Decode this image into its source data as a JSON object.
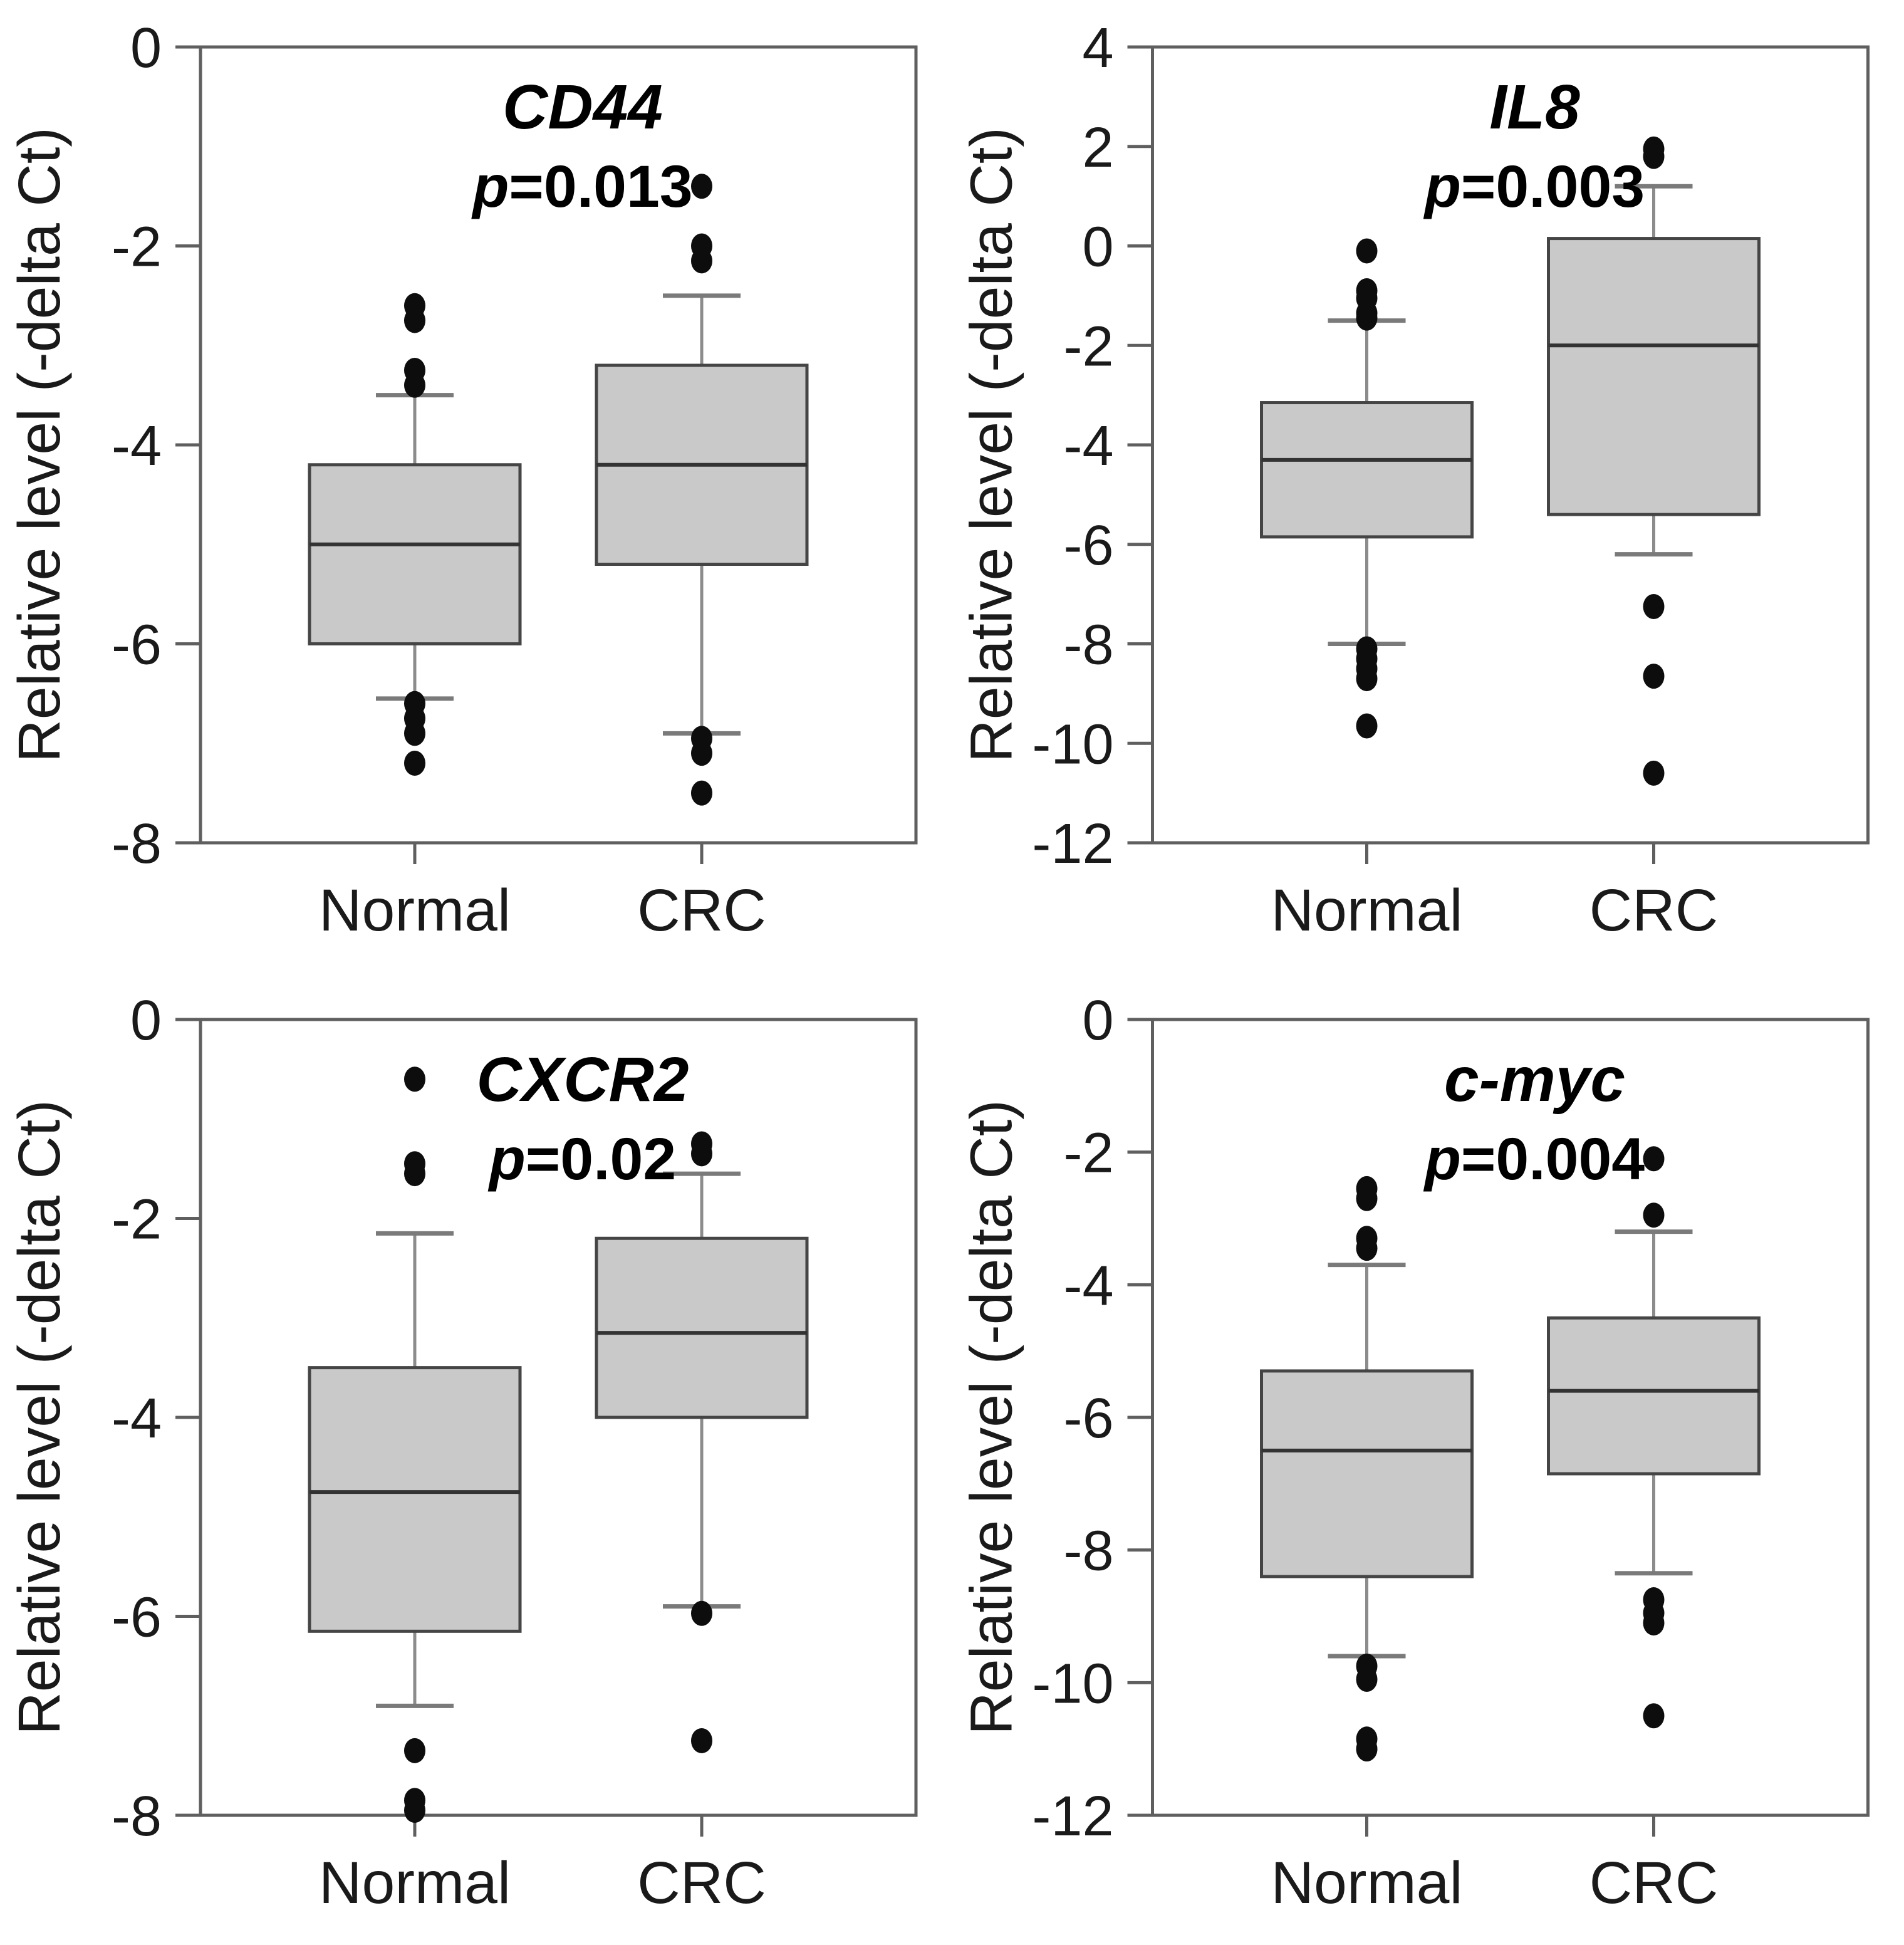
{
  "figure": {
    "description": "Box plots of relative gene expression in Normal vs CRC tissue",
    "ylabel": "Relative level (-delta Ct)",
    "x_categories": [
      "Normal",
      "CRC"
    ],
    "colors": {
      "background": "#ffffff",
      "box_fill": "#c9c9c9",
      "box_border": "#454545",
      "median_line": "#333333",
      "whisker": "#8c8c8c",
      "whisker_cap": "#7a7a7a",
      "frame": "#5f5f5f",
      "outlier_dot": "#0d0d0d",
      "tick_text": "#1a1a1a",
      "title_text": "#000000"
    }
  },
  "chart_data": [
    {
      "type": "box",
      "title": "CD44",
      "p_text": "p=0.013",
      "ylabel": "Relative level (-delta Ct)",
      "ylim": [
        -8,
        0
      ],
      "yticks": [
        0,
        -2,
        -4,
        -6,
        -8
      ],
      "categories": [
        "Normal",
        "CRC"
      ],
      "legend_position": "none",
      "grid": false,
      "series": [
        {
          "name": "Normal",
          "q1": -6.0,
          "median": -5.0,
          "q3": -4.2,
          "whisker_low": -6.55,
          "whisker_high": -3.5,
          "outliers": [
            -2.6,
            -2.75,
            -3.25,
            -3.4,
            -6.6,
            -6.75,
            -6.9,
            -7.2
          ]
        },
        {
          "name": "CRC",
          "q1": -5.2,
          "median": -4.2,
          "q3": -3.2,
          "whisker_low": -6.9,
          "whisker_high": -2.5,
          "outliers": [
            -1.4,
            -2.0,
            -2.15,
            -6.95,
            -7.1,
            -7.5
          ]
        }
      ]
    },
    {
      "type": "box",
      "title": "IL8",
      "p_text": "p=0.003",
      "ylabel": "Relative level (-delta Ct)",
      "ylim": [
        -12,
        4
      ],
      "yticks": [
        4,
        2,
        0,
        -2,
        -4,
        -6,
        -8,
        -10,
        -12
      ],
      "categories": [
        "Normal",
        "CRC"
      ],
      "legend_position": "none",
      "grid": false,
      "series": [
        {
          "name": "Normal",
          "q1": -5.85,
          "median": -4.3,
          "q3": -3.15,
          "whisker_low": -8.0,
          "whisker_high": -1.5,
          "outliers": [
            -0.1,
            -0.9,
            -1.05,
            -1.35,
            -1.45,
            -8.1,
            -8.3,
            -8.5,
            -8.7,
            -9.65
          ]
        },
        {
          "name": "CRC",
          "q1": -5.4,
          "median": -2.0,
          "q3": 0.15,
          "whisker_low": -6.2,
          "whisker_high": 1.2,
          "outliers": [
            1.95,
            1.8,
            -7.25,
            -8.65,
            -10.6
          ]
        }
      ]
    },
    {
      "type": "box",
      "title": "CXCR2",
      "p_text": "p=0.02",
      "ylabel": "Relative level (-delta Ct)",
      "ylim": [
        -8,
        0
      ],
      "yticks": [
        0,
        -2,
        -4,
        -6,
        -8
      ],
      "categories": [
        "Normal",
        "CRC"
      ],
      "legend_position": "none",
      "grid": false,
      "series": [
        {
          "name": "Normal",
          "q1": -6.15,
          "median": -4.75,
          "q3": -3.5,
          "whisker_low": -6.9,
          "whisker_high": -2.15,
          "outliers": [
            -0.6,
            -1.45,
            -1.55,
            -7.35,
            -7.85,
            -7.95
          ]
        },
        {
          "name": "CRC",
          "q1": -4.0,
          "median": -3.15,
          "q3": -2.2,
          "whisker_low": -5.9,
          "whisker_high": -1.55,
          "outliers": [
            -1.25,
            -1.35,
            -5.97,
            -7.25
          ]
        }
      ]
    },
    {
      "type": "box",
      "title": "c-myc",
      "p_text": "p=0.004",
      "ylabel": "Relative level (-delta Ct)",
      "ylim": [
        -12,
        0
      ],
      "yticks": [
        0,
        -2,
        -4,
        -6,
        -8,
        -10,
        -12
      ],
      "categories": [
        "Normal",
        "CRC"
      ],
      "legend_position": "none",
      "grid": false,
      "series": [
        {
          "name": "Normal",
          "q1": -8.4,
          "median": -6.5,
          "q3": -5.3,
          "whisker_low": -9.6,
          "whisker_high": -3.7,
          "outliers": [
            -2.55,
            -2.7,
            -3.3,
            -3.45,
            -9.75,
            -9.95,
            -10.85,
            -11.0
          ]
        },
        {
          "name": "CRC",
          "q1": -6.85,
          "median": -5.6,
          "q3": -4.5,
          "whisker_low": -8.35,
          "whisker_high": -3.2,
          "outliers": [
            -2.1,
            -2.95,
            -8.75,
            -8.95,
            -9.1,
            -10.5
          ]
        }
      ]
    }
  ]
}
